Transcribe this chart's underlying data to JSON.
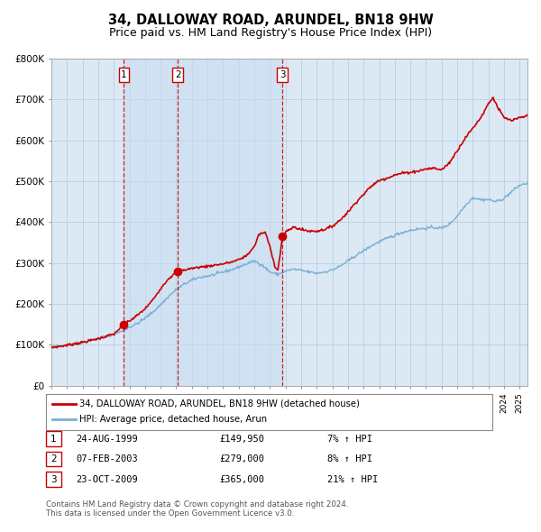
{
  "title": "34, DALLOWAY ROAD, ARUNDEL, BN18 9HW",
  "subtitle": "Price paid vs. HM Land Registry's House Price Index (HPI)",
  "title_fontsize": 10.5,
  "subtitle_fontsize": 9,
  "sale_prices": [
    149950,
    279000,
    365000
  ],
  "sale_labels": [
    "1",
    "2",
    "3"
  ],
  "sale_times": [
    1999.646,
    2003.096,
    2009.81
  ],
  "legend_line1": "34, DALLOWAY ROAD, ARUNDEL, BN18 9HW (detached house)",
  "legend_line2": "HPI: Average price, detached house, Arun",
  "table_entries": [
    {
      "num": "1",
      "date": "24-AUG-1999",
      "price": "£149,950",
      "hpi": "7% ↑ HPI"
    },
    {
      "num": "2",
      "date": "07-FEB-2003",
      "price": "£279,000",
      "hpi": "8% ↑ HPI"
    },
    {
      "num": "3",
      "date": "23-OCT-2009",
      "price": "£365,000",
      "hpi": "21% ↑ HPI"
    }
  ],
  "footer1": "Contains HM Land Registry data © Crown copyright and database right 2024.",
  "footer2": "This data is licensed under the Open Government Licence v3.0.",
  "red_color": "#cc0000",
  "blue_color": "#7aafd4",
  "bg_color": "#dce9f5",
  "shade_color": "#c8ddf0",
  "grid_color": "#b0c8e0",
  "ylim": [
    0,
    800000
  ],
  "yticks": [
    0,
    100000,
    200000,
    300000,
    400000,
    500000,
    600000,
    700000,
    800000
  ],
  "ytick_labels": [
    "£0",
    "£100K",
    "£200K",
    "£300K",
    "£400K",
    "£500K",
    "£600K",
    "£700K",
    "£800K"
  ],
  "xmin": 1995.0,
  "xmax": 2025.5,
  "hpi_anchors": [
    [
      1995.0,
      95000
    ],
    [
      1996.0,
      100000
    ],
    [
      1997.0,
      107000
    ],
    [
      1998.0,
      116000
    ],
    [
      1999.0,
      126000
    ],
    [
      1999.5,
      133000
    ],
    [
      2000.0,
      143000
    ],
    [
      2000.5,
      152000
    ],
    [
      2001.0,
      165000
    ],
    [
      2001.5,
      180000
    ],
    [
      2002.0,
      198000
    ],
    [
      2002.5,
      218000
    ],
    [
      2003.0,
      235000
    ],
    [
      2003.5,
      248000
    ],
    [
      2004.0,
      258000
    ],
    [
      2004.5,
      265000
    ],
    [
      2005.0,
      268000
    ],
    [
      2005.5,
      272000
    ],
    [
      2006.0,
      278000
    ],
    [
      2006.5,
      283000
    ],
    [
      2007.0,
      290000
    ],
    [
      2007.5,
      298000
    ],
    [
      2008.0,
      305000
    ],
    [
      2008.5,
      295000
    ],
    [
      2009.0,
      278000
    ],
    [
      2009.5,
      272000
    ],
    [
      2010.0,
      280000
    ],
    [
      2010.5,
      285000
    ],
    [
      2011.0,
      282000
    ],
    [
      2011.5,
      278000
    ],
    [
      2012.0,
      275000
    ],
    [
      2012.5,
      278000
    ],
    [
      2013.0,
      283000
    ],
    [
      2013.5,
      292000
    ],
    [
      2014.0,
      305000
    ],
    [
      2014.5,
      318000
    ],
    [
      2015.0,
      330000
    ],
    [
      2015.5,
      342000
    ],
    [
      2016.0,
      352000
    ],
    [
      2016.5,
      360000
    ],
    [
      2017.0,
      368000
    ],
    [
      2017.5,
      375000
    ],
    [
      2018.0,
      380000
    ],
    [
      2018.5,
      383000
    ],
    [
      2019.0,
      385000
    ],
    [
      2019.5,
      387000
    ],
    [
      2020.0,
      385000
    ],
    [
      2020.5,
      395000
    ],
    [
      2021.0,
      415000
    ],
    [
      2021.5,
      440000
    ],
    [
      2022.0,
      460000
    ],
    [
      2022.5,
      455000
    ],
    [
      2023.0,
      455000
    ],
    [
      2023.5,
      450000
    ],
    [
      2024.0,
      458000
    ],
    [
      2024.5,
      475000
    ],
    [
      2025.0,
      490000
    ],
    [
      2025.5,
      495000
    ]
  ],
  "prop_anchors": [
    [
      1995.0,
      93000
    ],
    [
      1996.0,
      99000
    ],
    [
      1997.0,
      106000
    ],
    [
      1998.0,
      115000
    ],
    [
      1999.0,
      126000
    ],
    [
      1999.646,
      149950
    ],
    [
      2000.0,
      158000
    ],
    [
      2000.5,
      172000
    ],
    [
      2001.0,
      188000
    ],
    [
      2001.5,
      210000
    ],
    [
      2002.0,
      238000
    ],
    [
      2002.5,
      262000
    ],
    [
      2003.096,
      279000
    ],
    [
      2003.5,
      283000
    ],
    [
      2004.0,
      287000
    ],
    [
      2004.5,
      290000
    ],
    [
      2005.0,
      292000
    ],
    [
      2005.5,
      295000
    ],
    [
      2006.0,
      298000
    ],
    [
      2006.5,
      302000
    ],
    [
      2007.0,
      308000
    ],
    [
      2007.5,
      318000
    ],
    [
      2008.0,
      340000
    ],
    [
      2008.3,
      370000
    ],
    [
      2008.7,
      375000
    ],
    [
      2009.0,
      340000
    ],
    [
      2009.3,
      295000
    ],
    [
      2009.5,
      280000
    ],
    [
      2009.81,
      365000
    ],
    [
      2010.0,
      375000
    ],
    [
      2010.5,
      388000
    ],
    [
      2011.0,
      382000
    ],
    [
      2011.5,
      378000
    ],
    [
      2012.0,
      378000
    ],
    [
      2012.5,
      382000
    ],
    [
      2013.0,
      390000
    ],
    [
      2013.5,
      405000
    ],
    [
      2014.0,
      425000
    ],
    [
      2014.5,
      448000
    ],
    [
      2015.0,
      468000
    ],
    [
      2015.5,
      488000
    ],
    [
      2016.0,
      502000
    ],
    [
      2016.5,
      508000
    ],
    [
      2017.0,
      515000
    ],
    [
      2017.5,
      520000
    ],
    [
      2018.0,
      522000
    ],
    [
      2018.5,
      525000
    ],
    [
      2019.0,
      530000
    ],
    [
      2019.5,
      532000
    ],
    [
      2020.0,
      528000
    ],
    [
      2020.5,
      545000
    ],
    [
      2021.0,
      575000
    ],
    [
      2021.5,
      605000
    ],
    [
      2022.0,
      630000
    ],
    [
      2022.5,
      655000
    ],
    [
      2023.0,
      690000
    ],
    [
      2023.3,
      705000
    ],
    [
      2023.6,
      680000
    ],
    [
      2024.0,
      655000
    ],
    [
      2024.5,
      648000
    ],
    [
      2025.0,
      655000
    ],
    [
      2025.5,
      660000
    ]
  ]
}
